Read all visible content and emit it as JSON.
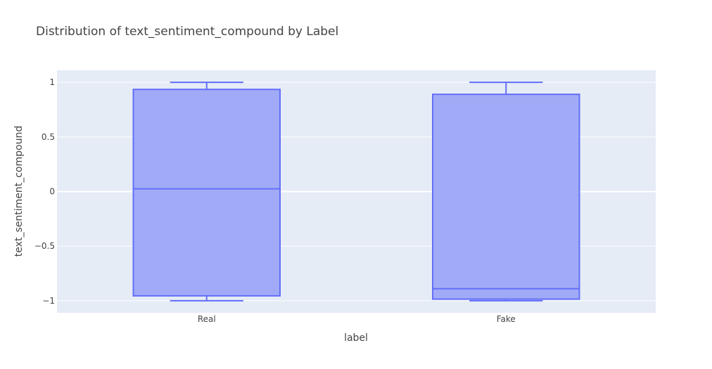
{
  "chart_data": {
    "type": "box",
    "title": "Distribution of text_sentiment_compound by Label",
    "xlabel": "label",
    "ylabel": "text_sentiment_compound",
    "categories": [
      "Real",
      "Fake"
    ],
    "boxes": [
      {
        "category": "Real",
        "min": -1.0,
        "q1": -0.955,
        "median": 0.025,
        "q3": 0.935,
        "max": 1.0
      },
      {
        "category": "Fake",
        "min": -1.0,
        "q1": -0.985,
        "median": -0.89,
        "q3": 0.89,
        "max": 1.0
      }
    ],
    "yticks": [
      -1,
      -0.5,
      0,
      0.5,
      1
    ],
    "ytick_labels": [
      "−1",
      "−0.5",
      "0",
      "0.5",
      "1"
    ],
    "ylim": [
      -1.11,
      1.11
    ],
    "grid": true,
    "colors": {
      "box_fill": "#a1aaf6",
      "box_line": "#636efa",
      "plot_bg": "#e5ecf6",
      "grid": "#ffffff"
    }
  }
}
